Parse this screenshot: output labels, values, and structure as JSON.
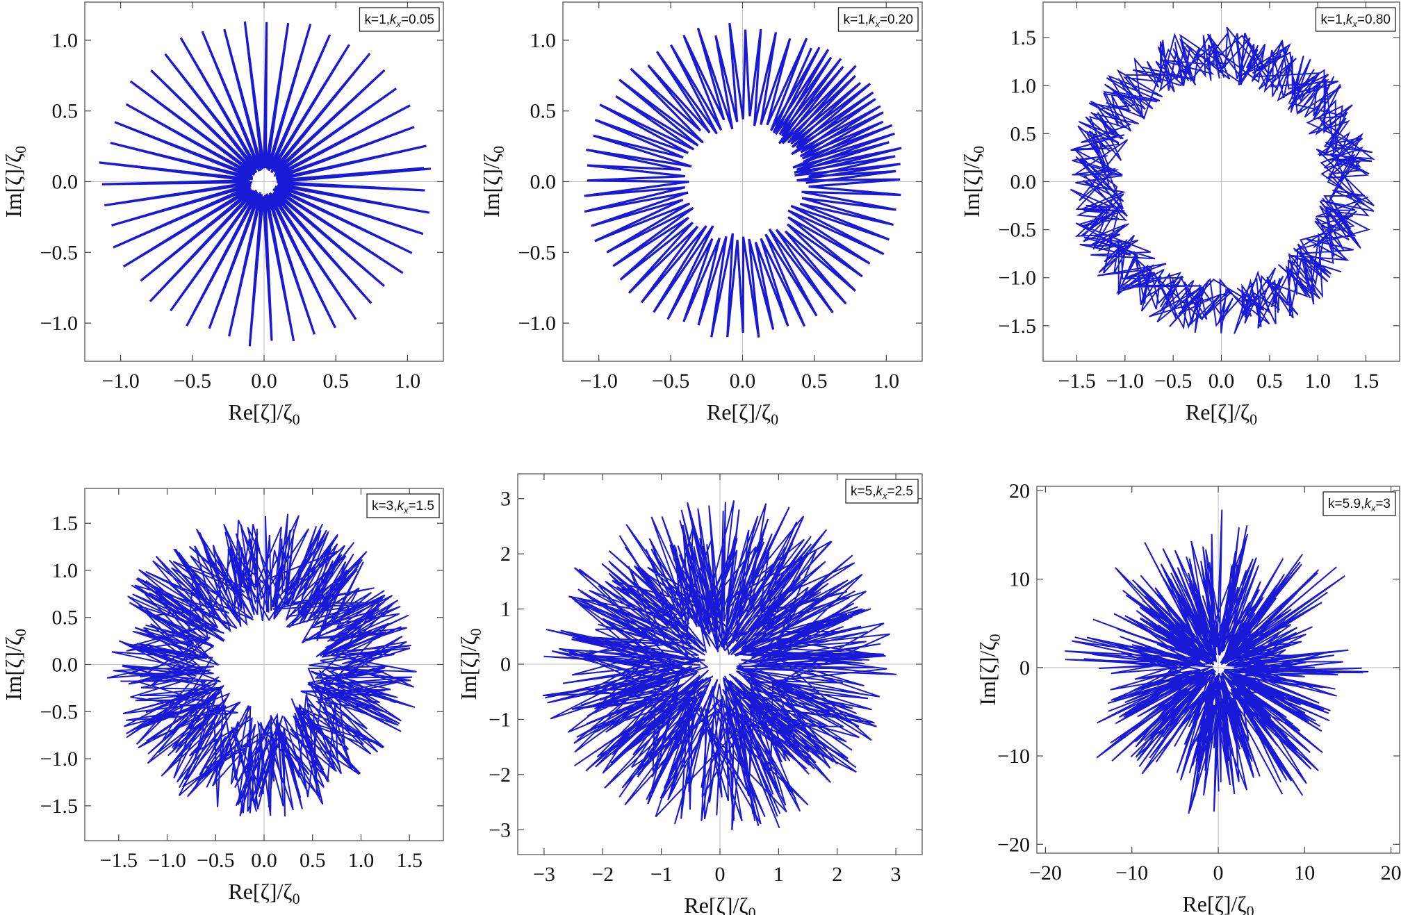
{
  "axis_titles": {
    "x_base": "Re[ζ]/ζ",
    "x_sub": "0",
    "y_base": "Im[ζ]/ζ",
    "y_sub": "0"
  },
  "series_color": "#1a1ad6",
  "chart_data": [
    {
      "type": "line",
      "legend": {
        "prefix": "k=1,",
        "var": "k",
        "sub": "x",
        "suffix": "=0.05"
      },
      "xlabel": "Re[ζ]/ζ0",
      "ylabel": "Im[ζ]/ζ0",
      "xlim": [
        -1.25,
        1.25
      ],
      "ylim": [
        -1.27,
        1.27
      ],
      "xticks": [
        -1.0,
        -0.5,
        0.0,
        0.5,
        1.0
      ],
      "yticks": [
        -1.0,
        -0.5,
        0.0,
        0.5,
        1.0
      ],
      "tick_labels_x": [
        "−1.0",
        "−0.5",
        "0.0",
        "0.5",
        "1.0"
      ],
      "tick_labels_y": [
        "−1.0",
        "−0.5",
        "0.0",
        "0.5",
        "1.0"
      ],
      "pattern": {
        "kind": "spokes",
        "inner": 0.08,
        "outer": 1.15,
        "spikes": 96,
        "turns": 0.02,
        "noise": 0.0
      }
    },
    {
      "type": "line",
      "legend": {
        "prefix": "k=1,",
        "var": "k",
        "sub": "x",
        "suffix": "=0.20"
      },
      "xlabel": "Re[ζ]/ζ0",
      "ylabel": "Im[ζ]/ζ0",
      "xlim": [
        -1.25,
        1.25
      ],
      "ylim": [
        -1.27,
        1.27
      ],
      "xticks": [
        -1.0,
        -0.5,
        0.0,
        0.5,
        1.0
      ],
      "yticks": [
        -1.0,
        -0.5,
        0.0,
        0.5,
        1.0
      ],
      "tick_labels_x": [
        "−1.0",
        "−0.5",
        "0.0",
        "0.5",
        "1.0"
      ],
      "tick_labels_y": [
        "−1.0",
        "−0.5",
        "0.0",
        "0.5",
        "1.0"
      ],
      "pattern": {
        "kind": "spokes",
        "inner": 0.36,
        "outer": 1.12,
        "spikes": 150,
        "turns": 0.18,
        "noise": 0.1
      }
    },
    {
      "type": "line",
      "legend": {
        "prefix": "k=1,",
        "var": "k",
        "sub": "x",
        "suffix": "=0.80"
      },
      "xlabel": "Re[ζ]/ζ0",
      "ylabel": "Im[ζ]/ζ0",
      "xlim": [
        -1.85,
        1.85
      ],
      "ylim": [
        -1.87,
        1.87
      ],
      "xticks": [
        -1.5,
        -1.0,
        -0.5,
        0.0,
        0.5,
        1.0,
        1.5
      ],
      "yticks": [
        -1.5,
        -1.0,
        -0.5,
        0.0,
        0.5,
        1.0,
        1.5
      ],
      "tick_labels_x": [
        "−1.5",
        "−1.0",
        "−0.5",
        "0.0",
        "0.5",
        "1.0",
        "1.5"
      ],
      "tick_labels_y": [
        "−1.5",
        "−1.0",
        "−0.5",
        "0.0",
        "0.5",
        "1.0",
        "1.5"
      ],
      "pattern": {
        "kind": "annulus",
        "inner": 1.02,
        "outer": 1.62,
        "spikes": 520,
        "turns": 3,
        "noise": 0.15
      }
    },
    {
      "type": "line",
      "legend": {
        "prefix": "k=3,",
        "var": "k",
        "sub": "x",
        "suffix": "=1.5"
      },
      "xlabel": "Re[ζ]/ζ0",
      "ylabel": "Im[ζ]/ζ0",
      "xlim": [
        -1.85,
        1.85
      ],
      "ylim": [
        -1.87,
        1.87
      ],
      "xticks": [
        -1.5,
        -1.0,
        -0.5,
        0.0,
        0.5,
        1.0,
        1.5
      ],
      "yticks": [
        -1.5,
        -1.0,
        -0.5,
        0.0,
        0.5,
        1.0,
        1.5
      ],
      "tick_labels_x": [
        "−1.5",
        "−1.0",
        "−0.5",
        "0.0",
        "0.5",
        "1.0",
        "1.5"
      ],
      "tick_labels_y": [
        "−1.5",
        "−1.0",
        "−0.5",
        "0.0",
        "0.5",
        "1.0",
        "1.5"
      ],
      "pattern": {
        "kind": "annulus",
        "inner": 0.45,
        "outer": 1.65,
        "spikes": 560,
        "turns": 4,
        "noise": 0.25
      }
    },
    {
      "type": "line",
      "legend": {
        "prefix": "k=5,",
        "var": "k",
        "sub": "x",
        "suffix": "=2.5"
      },
      "xlabel": "Re[ζ]/ζ0",
      "ylabel": "Im[ζ]/ζ0",
      "xlim": [
        -3.45,
        3.45
      ],
      "ylim": [
        -3.45,
        3.45
      ],
      "xticks": [
        -3,
        -2,
        -1,
        0,
        1,
        2,
        3
      ],
      "yticks": [
        -3,
        -2,
        -1,
        0,
        1,
        2,
        3
      ],
      "tick_labels_x": [
        "−3",
        "−2",
        "−1",
        "0",
        "1",
        "2",
        "3"
      ],
      "tick_labels_y": [
        "−3",
        "−2",
        "−1",
        "0",
        "1",
        "2",
        "3"
      ],
      "pattern": {
        "kind": "annulus",
        "inner": 0.22,
        "outer": 3.15,
        "spikes": 620,
        "turns": 5,
        "noise": 0.3
      }
    },
    {
      "type": "line",
      "legend": {
        "prefix": "k=5.9,",
        "var": "k",
        "sub": "x",
        "suffix": "=3"
      },
      "xlabel": "Re[ζ]/ζ0",
      "ylabel": "Im[ζ]/ζ0",
      "xlim": [
        -21,
        21
      ],
      "ylim": [
        -21,
        20.5
      ],
      "xticks": [
        -20,
        -10,
        0,
        10,
        20
      ],
      "yticks": [
        -20,
        -10,
        0,
        10,
        20
      ],
      "tick_labels_x": [
        "−20",
        "−10",
        "0",
        "10",
        "20"
      ],
      "tick_labels_y": [
        "−20",
        "−10",
        "0",
        "10",
        "20"
      ],
      "pattern": {
        "kind": "star",
        "inner": 0.5,
        "outer": 18.5,
        "spikes": 560,
        "turns": 6,
        "noise": 0.35
      }
    }
  ]
}
